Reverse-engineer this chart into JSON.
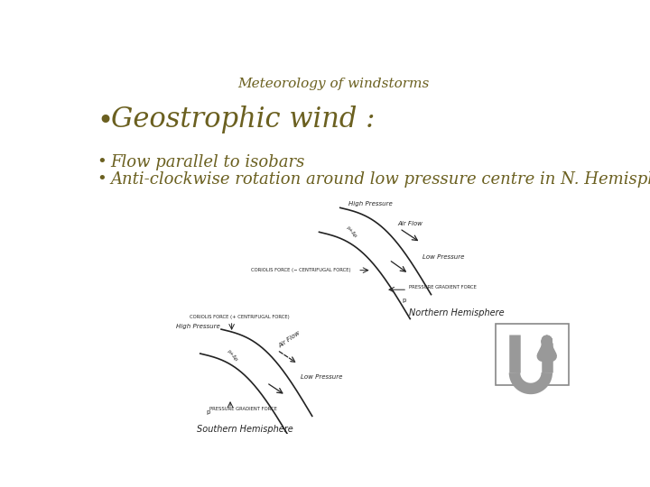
{
  "title": "Meteorology of windstorms",
  "title_color": "#6b6020",
  "title_fontsize": 11,
  "bullet1_text": "Geostrophic wind :",
  "bullet1_fontsize": 22,
  "bullet1_color": "#6b6020",
  "bullet2_text": "Flow parallel to isobars",
  "bullet2_fontsize": 13,
  "bullet2_color": "#6b6020",
  "bullet3_text": "Anti-clockwise rotation around low pressure centre in N. Hemisphere",
  "bullet3_fontsize": 13,
  "bullet3_color": "#6b6020",
  "bg_color": "#ffffff",
  "diag_color": "#222222",
  "northern_label": "Northern Hemisphere",
  "southern_label": "Southern Hemisphere",
  "uturn_color": "#999999"
}
